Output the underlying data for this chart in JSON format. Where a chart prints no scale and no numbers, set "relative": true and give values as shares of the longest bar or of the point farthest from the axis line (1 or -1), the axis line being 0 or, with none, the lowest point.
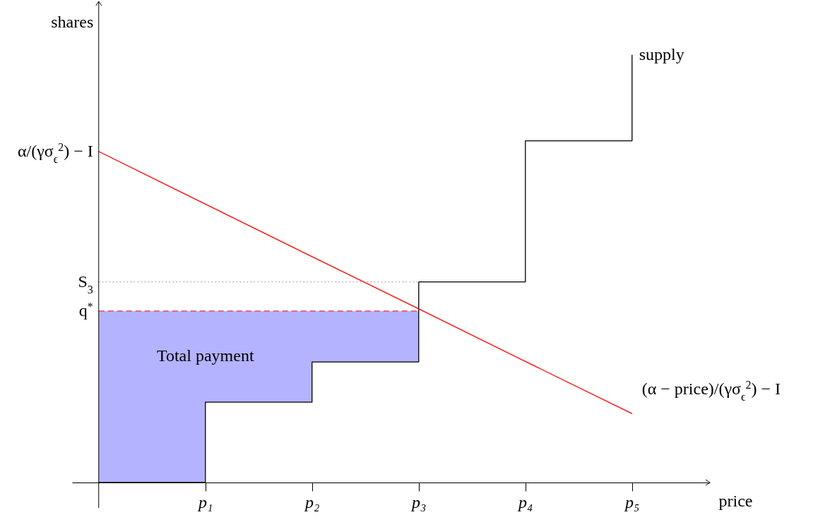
{
  "chart_data": {
    "type": "step",
    "relative": true,
    "xlabel": "price",
    "ylabel": "shares",
    "categories": [
      null,
      "p₁",
      "p₂",
      "p₃",
      "p₄",
      "p₅"
    ],
    "annotations": [
      "α/(γσ$_{ϵ}$$^{2}$) − I"
    ],
    "ref_lines": [
      {
        "axis": "y",
        "value": 0.401,
        "label": "q$^{*}$",
        "color": "#ff0000",
        "line_style": "dashed"
      },
      {
        "axis": "y",
        "value": 0.469,
        "label": "S$_{3}$",
        "color": "#555555",
        "line_style": "dotted"
      }
    ],
    "series": [
      {
        "type": "area",
        "name": "Total payment",
        "color": "#b3b3ff",
        "values": [
          0.401,
          0.401,
          0.401,
          0.401,
          null,
          null
        ]
      },
      {
        "name": "supply",
        "color": "#000000",
        "values": [
          0,
          0.188,
          0.282,
          0.469,
          0.799,
          1
        ]
      },
      {
        "type": "line",
        "name": "(α − price)/(γσ$_{ϵ}$$^{2}$) − I",
        "color": "#ff0000",
        "values": [
          0.774,
          0.651,
          0.528,
          0.406,
          0.283,
          0.161
        ]
      }
    ]
  }
}
